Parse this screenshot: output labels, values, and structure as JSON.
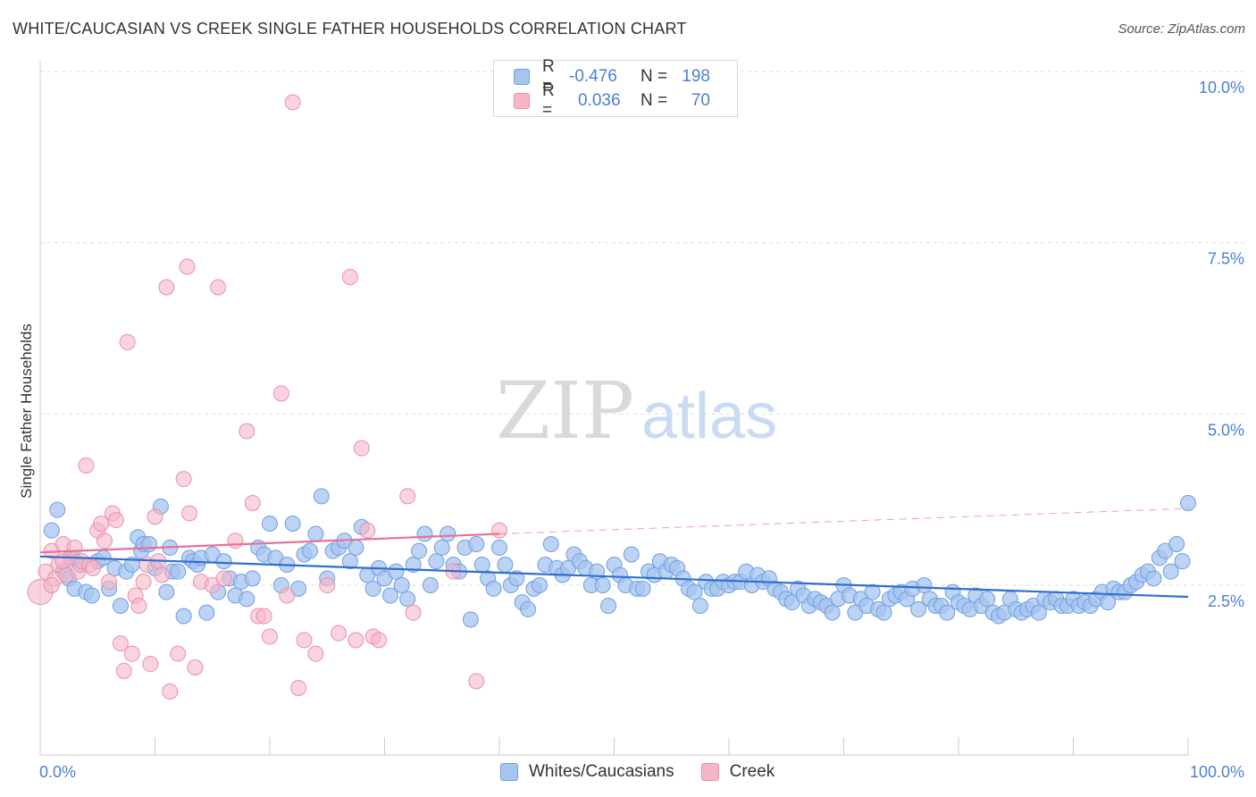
{
  "title": "WHITE/CAUCASIAN VS CREEK SINGLE FATHER HOUSEHOLDS CORRELATION CHART",
  "source": "Source: ZipAtlas.com",
  "watermark": {
    "zip": "ZIP",
    "atlas": "atlas"
  },
  "legend_top": [
    {
      "r_label": "R =",
      "r_value": "-0.476",
      "n_label": "N =",
      "n_value": "198",
      "color": "#a7c4ef"
    },
    {
      "r_label": "R =",
      "r_value": "0.036",
      "n_label": "N =",
      "n_value": "70",
      "color": "#f5b6c8"
    }
  ],
  "legend_bottom": [
    {
      "label": "Whites/Caucasians",
      "color": "#a7c4ef"
    },
    {
      "label": "Creek",
      "color": "#f5b6c8"
    }
  ],
  "colors": {
    "blue_fill": "#a7c4ef",
    "blue_stroke": "#6e9fe2",
    "blue_line": "#2f6fd0",
    "pink_fill": "#f5b6c8",
    "pink_stroke": "#ec8fab",
    "pink_line": "#e8709a",
    "axis_text": "#4a7fd4",
    "grid": "#dcdcdc"
  },
  "chart_data": {
    "type": "scatter",
    "title": "WHITE/CAUCASIAN VS CREEK SINGLE FATHER HOUSEHOLDS CORRELATION CHART",
    "xlabel": "",
    "ylabel": "Single Father Households",
    "xlim": [
      0,
      100
    ],
    "ylim": [
      0,
      10.5
    ],
    "x_tick_labels": [
      "0.0%",
      "100.0%"
    ],
    "y_ticks": [
      2.5,
      5.0,
      7.5,
      10.0
    ],
    "y_tick_labels": [
      "2.5%",
      "5.0%",
      "7.5%",
      "10.0%"
    ],
    "grid": "horizontal-dashed",
    "legend_position": "top-center",
    "series": [
      {
        "name": "Whites/Caucasians",
        "trend": {
          "x": [
            0,
            100
          ],
          "y": [
            2.92,
            2.33
          ]
        },
        "points": [
          [
            1,
            3.3
          ],
          [
            1.5,
            3.6
          ],
          [
            2,
            2.7
          ],
          [
            2.5,
            2.6
          ],
          [
            2.8,
            2.9
          ],
          [
            3,
            2.45
          ],
          [
            3.5,
            2.8
          ],
          [
            4,
            2.4
          ],
          [
            4.5,
            2.35
          ],
          [
            5,
            2.85
          ],
          [
            5.5,
            2.9
          ],
          [
            6,
            2.45
          ],
          [
            6.5,
            2.75
          ],
          [
            7,
            2.2
          ],
          [
            7.5,
            2.7
          ],
          [
            8,
            2.8
          ],
          [
            8.5,
            3.2
          ],
          [
            8.8,
            3.0
          ],
          [
            9,
            3.1
          ],
          [
            9.5,
            3.1
          ],
          [
            10,
            2.75
          ],
          [
            10.5,
            3.65
          ],
          [
            11,
            2.4
          ],
          [
            11.3,
            3.05
          ],
          [
            11.5,
            2.7
          ],
          [
            12,
            2.7
          ],
          [
            12.5,
            2.05
          ],
          [
            13,
            2.9
          ],
          [
            13.3,
            2.85
          ],
          [
            13.7,
            2.8
          ],
          [
            14,
            2.9
          ],
          [
            14.5,
            2.1
          ],
          [
            15,
            2.95
          ],
          [
            15.5,
            2.4
          ],
          [
            16,
            2.85
          ],
          [
            16.5,
            2.6
          ],
          [
            17,
            2.35
          ],
          [
            17.5,
            2.55
          ],
          [
            18,
            2.3
          ],
          [
            18.5,
            2.6
          ],
          [
            19,
            3.05
          ],
          [
            19.5,
            2.95
          ],
          [
            20,
            3.4
          ],
          [
            20.5,
            2.9
          ],
          [
            21,
            2.5
          ],
          [
            21.5,
            2.8
          ],
          [
            22,
            3.4
          ],
          [
            22.5,
            2.45
          ],
          [
            23,
            2.95
          ],
          [
            23.5,
            3.0
          ],
          [
            24,
            3.25
          ],
          [
            24.5,
            3.8
          ],
          [
            25,
            2.6
          ],
          [
            25.5,
            3.0
          ],
          [
            26,
            3.05
          ],
          [
            26.5,
            3.15
          ],
          [
            27,
            2.85
          ],
          [
            27.5,
            3.05
          ],
          [
            28,
            3.35
          ],
          [
            28.5,
            2.65
          ],
          [
            29,
            2.45
          ],
          [
            29.5,
            2.75
          ],
          [
            30,
            2.6
          ],
          [
            30.5,
            2.35
          ],
          [
            31,
            2.7
          ],
          [
            31.5,
            2.5
          ],
          [
            32,
            2.3
          ],
          [
            32.5,
            2.8
          ],
          [
            33,
            3.0
          ],
          [
            33.5,
            3.25
          ],
          [
            34,
            2.5
          ],
          [
            34.5,
            2.85
          ],
          [
            35,
            3.05
          ],
          [
            35.5,
            3.25
          ],
          [
            36,
            2.8
          ],
          [
            36.5,
            2.7
          ],
          [
            37,
            3.05
          ],
          [
            37.5,
            2.0
          ],
          [
            38,
            3.1
          ],
          [
            38.5,
            2.8
          ],
          [
            39,
            2.6
          ],
          [
            39.5,
            2.45
          ],
          [
            40,
            3.05
          ],
          [
            40.5,
            2.8
          ],
          [
            41,
            2.5
          ],
          [
            41.5,
            2.6
          ],
          [
            42,
            2.25
          ],
          [
            42.5,
            2.15
          ],
          [
            43,
            2.45
          ],
          [
            43.5,
            2.5
          ],
          [
            44,
            2.8
          ],
          [
            44.5,
            3.1
          ],
          [
            45,
            2.75
          ],
          [
            45.5,
            2.65
          ],
          [
            46,
            2.75
          ],
          [
            46.5,
            2.95
          ],
          [
            47,
            2.85
          ],
          [
            47.5,
            2.75
          ],
          [
            48,
            2.5
          ],
          [
            48.5,
            2.7
          ],
          [
            49,
            2.5
          ],
          [
            49.5,
            2.2
          ],
          [
            50,
            2.8
          ],
          [
            50.5,
            2.65
          ],
          [
            51,
            2.5
          ],
          [
            51.5,
            2.95
          ],
          [
            52,
            2.45
          ],
          [
            52.5,
            2.45
          ],
          [
            53,
            2.7
          ],
          [
            53.5,
            2.65
          ],
          [
            54,
            2.85
          ],
          [
            54.5,
            2.7
          ],
          [
            55,
            2.8
          ],
          [
            55.5,
            2.75
          ],
          [
            56,
            2.6
          ],
          [
            56.5,
            2.45
          ],
          [
            57,
            2.4
          ],
          [
            57.5,
            2.2
          ],
          [
            58,
            2.55
          ],
          [
            58.5,
            2.45
          ],
          [
            59,
            2.45
          ],
          [
            59.5,
            2.55
          ],
          [
            60,
            2.5
          ],
          [
            60.5,
            2.55
          ],
          [
            61,
            2.55
          ],
          [
            61.5,
            2.7
          ],
          [
            62,
            2.5
          ],
          [
            62.5,
            2.65
          ],
          [
            63,
            2.55
          ],
          [
            63.5,
            2.6
          ],
          [
            64,
            2.45
          ],
          [
            64.5,
            2.4
          ],
          [
            65,
            2.3
          ],
          [
            65.5,
            2.25
          ],
          [
            66,
            2.45
          ],
          [
            66.5,
            2.35
          ],
          [
            67,
            2.2
          ],
          [
            67.5,
            2.3
          ],
          [
            68,
            2.25
          ],
          [
            68.5,
            2.2
          ],
          [
            69,
            2.1
          ],
          [
            69.5,
            2.3
          ],
          [
            70,
            2.5
          ],
          [
            70.5,
            2.35
          ],
          [
            71,
            2.1
          ],
          [
            71.5,
            2.3
          ],
          [
            72,
            2.2
          ],
          [
            72.5,
            2.4
          ],
          [
            73,
            2.15
          ],
          [
            73.5,
            2.1
          ],
          [
            74,
            2.3
          ],
          [
            74.5,
            2.35
          ],
          [
            75,
            2.4
          ],
          [
            75.5,
            2.3
          ],
          [
            76,
            2.45
          ],
          [
            76.5,
            2.15
          ],
          [
            77,
            2.5
          ],
          [
            77.5,
            2.3
          ],
          [
            78,
            2.2
          ],
          [
            78.5,
            2.2
          ],
          [
            79,
            2.1
          ],
          [
            79.5,
            2.4
          ],
          [
            80,
            2.25
          ],
          [
            80.5,
            2.2
          ],
          [
            81,
            2.15
          ],
          [
            81.5,
            2.35
          ],
          [
            82,
            2.2
          ],
          [
            82.5,
            2.3
          ],
          [
            83,
            2.1
          ],
          [
            83.5,
            2.05
          ],
          [
            84,
            2.1
          ],
          [
            84.5,
            2.3
          ],
          [
            85,
            2.15
          ],
          [
            85.5,
            2.1
          ],
          [
            86,
            2.15
          ],
          [
            86.5,
            2.2
          ],
          [
            87,
            2.1
          ],
          [
            87.5,
            2.3
          ],
          [
            88,
            2.25
          ],
          [
            88.5,
            2.3
          ],
          [
            89,
            2.2
          ],
          [
            89.5,
            2.2
          ],
          [
            90,
            2.3
          ],
          [
            90.5,
            2.2
          ],
          [
            91,
            2.25
          ],
          [
            91.5,
            2.2
          ],
          [
            92,
            2.3
          ],
          [
            92.5,
            2.4
          ],
          [
            93,
            2.25
          ],
          [
            93.5,
            2.45
          ],
          [
            94,
            2.4
          ],
          [
            94.5,
            2.4
          ],
          [
            95,
            2.5
          ],
          [
            95.5,
            2.55
          ],
          [
            96,
            2.65
          ],
          [
            96.5,
            2.7
          ],
          [
            97,
            2.6
          ],
          [
            97.5,
            2.9
          ],
          [
            98,
            3.0
          ],
          [
            98.5,
            2.7
          ],
          [
            99,
            3.1
          ],
          [
            99.5,
            2.85
          ],
          [
            100,
            3.7
          ]
        ]
      },
      {
        "name": "Creek",
        "trend": {
          "x": [
            0,
            40
          ],
          "y": [
            2.98,
            3.25
          ]
        },
        "trend_extension": {
          "x": [
            40,
            100
          ],
          "y": [
            3.25,
            3.62
          ]
        },
        "points": [
          [
            0,
            2.4
          ],
          [
            0.5,
            2.7
          ],
          [
            1,
            3.0
          ],
          [
            1.3,
            2.6
          ],
          [
            1.6,
            2.8
          ],
          [
            2,
            3.1
          ],
          [
            2.3,
            2.65
          ],
          [
            2.6,
            2.9
          ],
          [
            3,
            3.05
          ],
          [
            3.3,
            2.7
          ],
          [
            3.6,
            2.85
          ],
          [
            4,
            4.25
          ],
          [
            4.3,
            2.8
          ],
          [
            4.6,
            2.75
          ],
          [
            5,
            3.3
          ],
          [
            5.3,
            3.4
          ],
          [
            5.6,
            3.15
          ],
          [
            6,
            2.55
          ],
          [
            6.3,
            3.55
          ],
          [
            6.6,
            3.45
          ],
          [
            7,
            1.65
          ],
          [
            7.3,
            1.25
          ],
          [
            7.6,
            6.05
          ],
          [
            8,
            1.5
          ],
          [
            8.3,
            2.35
          ],
          [
            8.6,
            2.2
          ],
          [
            9,
            2.55
          ],
          [
            9.3,
            2.8
          ],
          [
            9.6,
            1.35
          ],
          [
            10,
            3.5
          ],
          [
            10.3,
            2.85
          ],
          [
            10.6,
            2.65
          ],
          [
            11,
            6.85
          ],
          [
            11.3,
            0.95
          ],
          [
            12,
            1.5
          ],
          [
            12.5,
            4.05
          ],
          [
            12.8,
            7.15
          ],
          [
            13,
            3.55
          ],
          [
            13.5,
            1.3
          ],
          [
            14,
            2.55
          ],
          [
            15,
            2.5
          ],
          [
            15.5,
            6.85
          ],
          [
            16,
            2.6
          ],
          [
            17,
            3.15
          ],
          [
            18,
            4.75
          ],
          [
            18.5,
            3.7
          ],
          [
            19,
            2.05
          ],
          [
            19.5,
            2.05
          ],
          [
            20,
            1.75
          ],
          [
            21,
            5.3
          ],
          [
            21.5,
            2.35
          ],
          [
            22,
            9.55
          ],
          [
            22.5,
            1.0
          ],
          [
            23,
            1.7
          ],
          [
            24,
            1.5
          ],
          [
            25,
            2.5
          ],
          [
            26,
            1.8
          ],
          [
            27,
            7.0
          ],
          [
            27.5,
            1.7
          ],
          [
            28,
            4.5
          ],
          [
            28.5,
            3.3
          ],
          [
            29,
            1.75
          ],
          [
            29.5,
            1.7
          ],
          [
            32,
            3.8
          ],
          [
            32.5,
            2.1
          ],
          [
            36,
            2.7
          ],
          [
            38,
            1.1
          ],
          [
            40,
            3.3
          ],
          [
            1,
            2.5
          ],
          [
            2,
            2.85
          ]
        ]
      }
    ]
  }
}
